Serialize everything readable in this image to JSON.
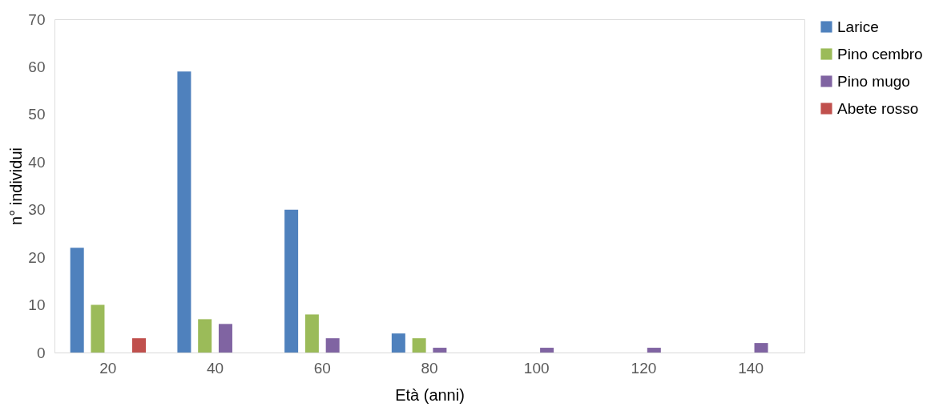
{
  "chart_data": {
    "type": "bar",
    "xlabel": "Età (anni)",
    "ylabel": "n° individui",
    "categories": [
      "20",
      "40",
      "60",
      "80",
      "100",
      "120",
      "140"
    ],
    "series": [
      {
        "name": "Larice",
        "color": "#4f81bd",
        "values": [
          22,
          59,
          30,
          4,
          0,
          0,
          0
        ]
      },
      {
        "name": "Pino cembro",
        "color": "#9bbb59",
        "values": [
          10,
          7,
          8,
          3,
          0,
          0,
          0
        ]
      },
      {
        "name": "Pino mugo",
        "color": "#8064a2",
        "values": [
          0,
          6,
          3,
          1,
          1,
          1,
          2
        ]
      },
      {
        "name": "Abete rosso",
        "color": "#c0504d",
        "values": [
          3,
          0,
          0,
          0,
          0,
          0,
          0
        ]
      }
    ],
    "ylim": [
      0,
      70
    ],
    "yticks": [
      0,
      10,
      20,
      30,
      40,
      50,
      60,
      70
    ],
    "grid": false,
    "legend": "right"
  }
}
